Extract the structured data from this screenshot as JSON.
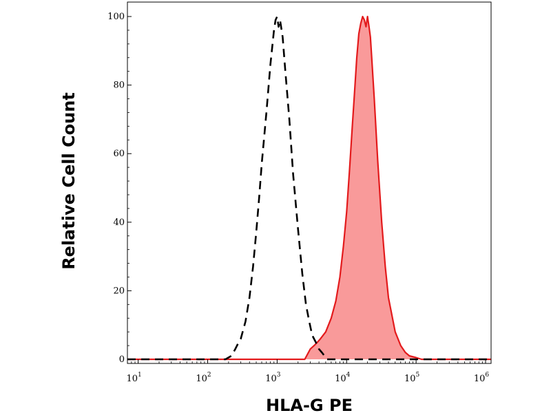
{
  "chart_data": {
    "type": "area",
    "title": "",
    "xlabel": "HLA-G PE",
    "ylabel": "Relative Cell Count",
    "xscale": "log",
    "xlim": [
      7,
      1200000
    ],
    "ylim": [
      0,
      102
    ],
    "grid": false,
    "legend": "none",
    "x_ticks": [
      {
        "base": "10",
        "exp": "1",
        "value": 10
      },
      {
        "base": "10",
        "exp": "2",
        "value": 100
      },
      {
        "base": "10",
        "exp": "3",
        "value": 1000
      },
      {
        "base": "10",
        "exp": "4",
        "value": 10000
      },
      {
        "base": "10",
        "exp": "5",
        "value": 100000
      },
      {
        "base": "10",
        "exp": "6",
        "value": 1000000
      }
    ],
    "y_ticks": [
      {
        "label": "0",
        "value": 0
      },
      {
        "label": "20",
        "value": 20
      },
      {
        "label": "40",
        "value": 40
      },
      {
        "label": "60",
        "value": 60
      },
      {
        "label": "80",
        "value": 80
      },
      {
        "label": "100",
        "value": 100
      }
    ],
    "series": [
      {
        "style": "dashed",
        "color": "#000000",
        "x": [
          7,
          100,
          180,
          220,
          250,
          280,
          300,
          350,
          400,
          450,
          500,
          550,
          600,
          700,
          800,
          900,
          950,
          1000,
          1050,
          1100,
          1200,
          1300,
          1500,
          1700,
          2000,
          2300,
          2600,
          2900,
          3200,
          3600,
          4000,
          4400,
          4800,
          5200,
          6000,
          1200000
        ],
        "y": [
          0,
          0,
          0,
          1,
          3,
          5,
          6,
          11,
          18,
          27,
          37,
          47,
          57,
          72,
          86,
          96,
          99,
          100,
          97,
          99,
          94,
          85,
          70,
          54,
          38,
          25,
          16,
          11,
          7,
          5,
          3,
          2,
          1,
          0,
          0,
          0
        ]
      },
      {
        "style": "filled",
        "color": "#e31a1c",
        "fill": "#f99a9a",
        "x": [
          7,
          2500,
          3000,
          3400,
          3800,
          4200,
          5000,
          6000,
          7000,
          8000,
          9000,
          10000,
          11000,
          12000,
          13000,
          14000,
          15000,
          16000,
          17000,
          18000,
          19000,
          20000,
          21000,
          22000,
          23000,
          25000,
          28000,
          32000,
          36000,
          40000,
          50000,
          60000,
          70000,
          80000,
          100000,
          120000,
          150000,
          1200000
        ],
        "y": [
          0,
          0,
          3,
          4,
          5,
          6,
          8,
          12,
          17,
          24,
          33,
          43,
          55,
          67,
          78,
          88,
          95,
          98,
          100,
          99,
          97,
          100,
          97,
          94,
          88,
          76,
          58,
          40,
          27,
          18,
          8,
          4,
          2,
          1,
          0.5,
          0,
          0,
          0
        ]
      }
    ]
  }
}
